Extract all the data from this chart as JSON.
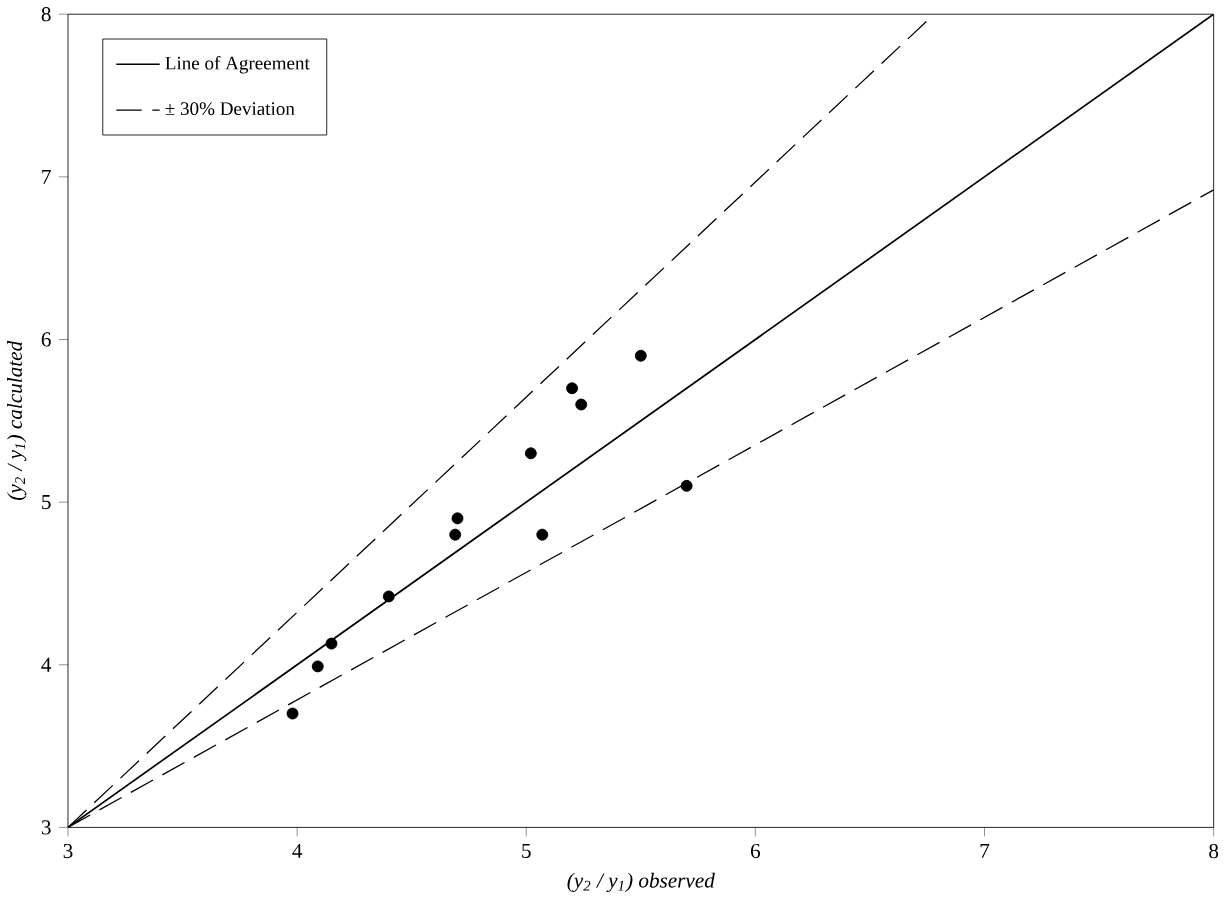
{
  "chart_data": {
    "type": "scatter",
    "xlabel": "(y$_{2}$ / y$_{1}$) observed",
    "ylabel": "(y$_{2}$ / y$_{1}$) calculated",
    "xlim": [
      3,
      8
    ],
    "ylim": [
      3,
      8
    ],
    "xticks": [
      3,
      4,
      5,
      6,
      7,
      8
    ],
    "yticks": [
      3,
      4,
      5,
      6,
      7,
      8
    ],
    "grid": false,
    "legend": "top left",
    "series": [
      {
        "color": "#000000",
        "marker": "circle",
        "x": [
          3.98,
          4.09,
          4.15,
          4.4,
          4.69,
          4.7,
          5.02,
          5.07,
          5.2,
          5.24,
          5.5,
          5.7
        ],
        "values": [
          3.7,
          3.99,
          4.13,
          4.42,
          4.8,
          4.9,
          5.3,
          4.8,
          5.7,
          5.6,
          5.9,
          5.1
        ]
      },
      {
        "type": "line",
        "name": "Line of Agreement",
        "color": "#000000",
        "line_style": "solid",
        "x": [
          3,
          8
        ],
        "values": [
          3,
          8
        ]
      },
      {
        "type": "line",
        "name": "± 30% Deviation",
        "color": "#000000",
        "line_style": "dashed",
        "x": [
          3,
          6.78
        ],
        "values": [
          3,
          8
        ]
      },
      {
        "type": "line",
        "color": "#000000",
        "line_style": "dashed",
        "x": [
          3,
          8
        ],
        "values": [
          3,
          6.92
        ]
      }
    ]
  }
}
